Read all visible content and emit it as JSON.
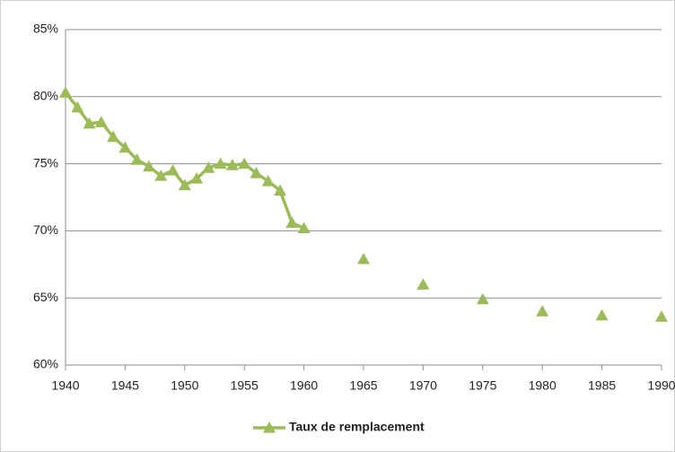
{
  "chart_data": {
    "type": "line",
    "x": [
      1940,
      1941,
      1942,
      1943,
      1944,
      1945,
      1946,
      1947,
      1948,
      1949,
      1950,
      1951,
      1952,
      1953,
      1954,
      1955,
      1956,
      1957,
      1958,
      1959,
      1960,
      1965,
      1970,
      1975,
      1980,
      1985,
      1990
    ],
    "series": [
      {
        "name": "Taux de remplacement",
        "color": "#9bbb59",
        "values": [
          80.3,
          79.2,
          78.0,
          78.1,
          77.0,
          76.2,
          75.3,
          74.8,
          74.1,
          74.5,
          73.4,
          73.9,
          74.7,
          75.0,
          74.9,
          75.0,
          74.3,
          73.7,
          73.0,
          70.6,
          70.2,
          67.9,
          66.0,
          64.9,
          64.0,
          63.7,
          63.6
        ]
      }
    ],
    "xlim": [
      1940,
      1990
    ],
    "xticks": [
      1940,
      1945,
      1950,
      1955,
      1960,
      1965,
      1970,
      1975,
      1980,
      1985,
      1990
    ],
    "ylim": [
      60,
      85
    ],
    "yticks": [
      {
        "value": 60,
        "label": "60%"
      },
      {
        "value": 65,
        "label": "65%"
      },
      {
        "value": 70,
        "label": "70%"
      },
      {
        "value": 75,
        "label": "75%"
      },
      {
        "value": 80,
        "label": "80%"
      },
      {
        "value": 85,
        "label": "85%"
      }
    ],
    "grid": true,
    "legend": "bottom"
  }
}
